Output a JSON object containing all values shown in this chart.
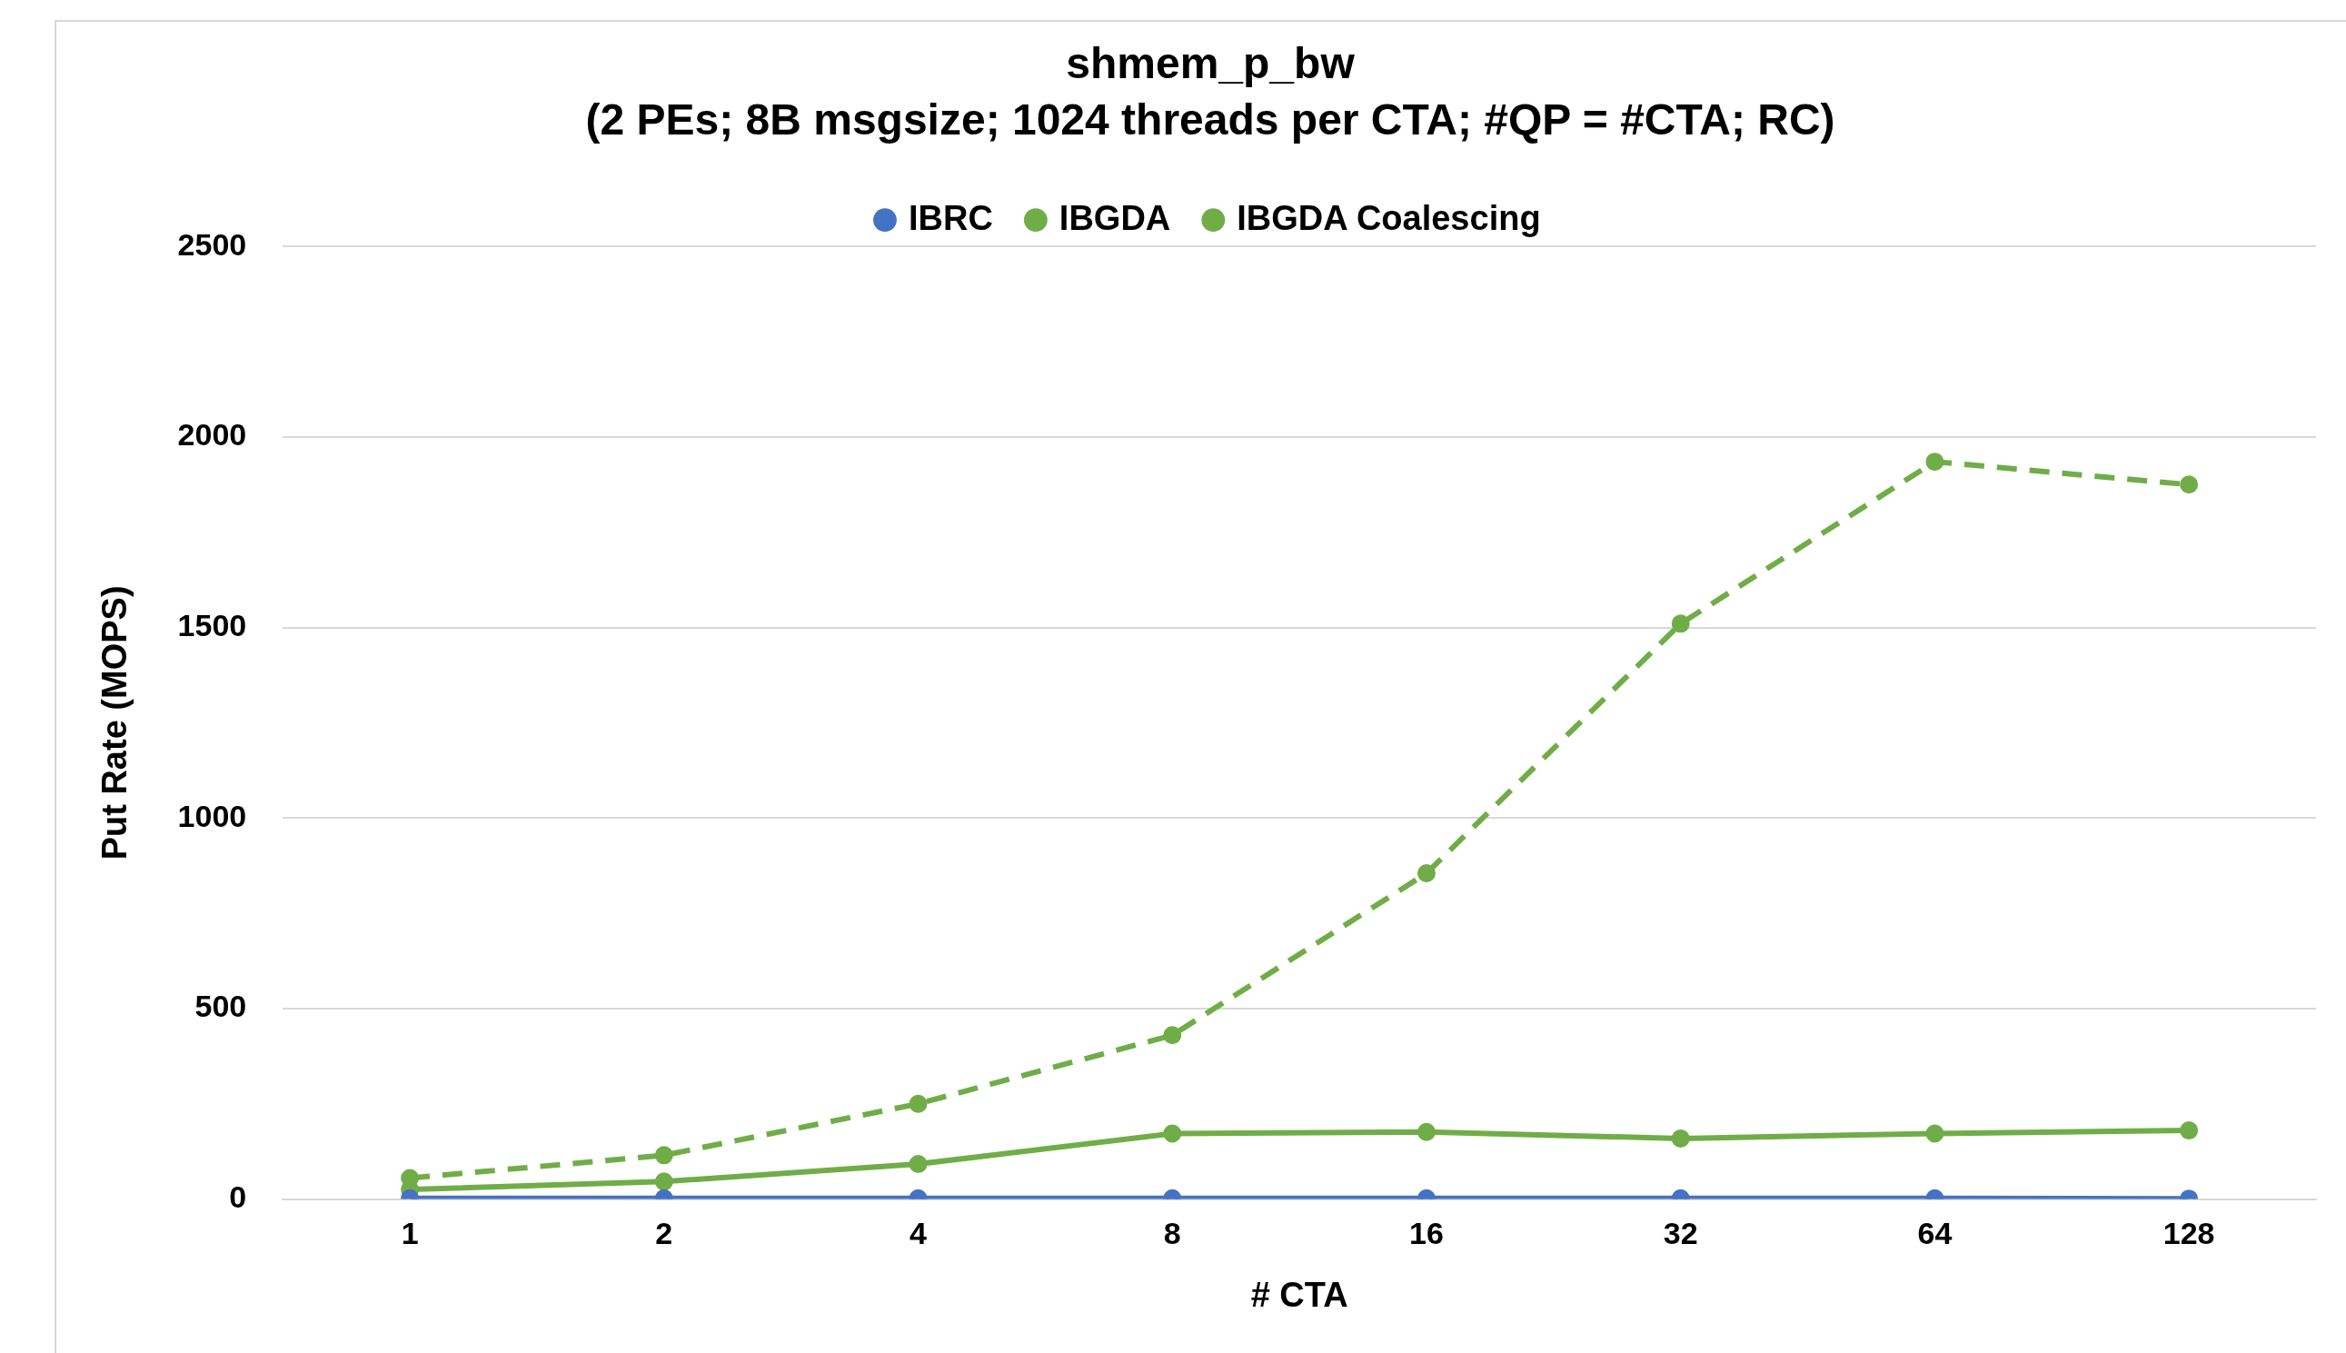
{
  "chart_data": {
    "type": "line",
    "title": "shmem_p_bw",
    "subtitle": "(2 PEs; 8B msgsize; 1024 threads per CTA; #QP = #CTA; RC)",
    "xlabel": "# CTA",
    "ylabel": "Put Rate (MOPS)",
    "categories": [
      "1",
      "2",
      "4",
      "8",
      "16",
      "32",
      "64",
      "128"
    ],
    "series": [
      {
        "name": "IBRC",
        "color": "#4472c4",
        "values": [
          2,
          2,
          2,
          2,
          2,
          2,
          2,
          1
        ]
      },
      {
        "name": "IBGDA",
        "color": "#70ad47",
        "values": [
          25,
          46,
          92,
          172,
          176,
          159,
          172,
          180
        ]
      },
      {
        "name": "IBGDA Coalescing",
        "color": "#70ad47",
        "line_style": "dashed",
        "values": [
          55,
          115,
          250,
          430,
          855,
          1510,
          1935,
          1875
        ]
      }
    ],
    "ylim": [
      0,
      2500
    ],
    "yticks": [
      0,
      500,
      1000,
      1500,
      2000,
      2500
    ],
    "grid": "y",
    "legend": "top",
    "marker": "circle"
  }
}
